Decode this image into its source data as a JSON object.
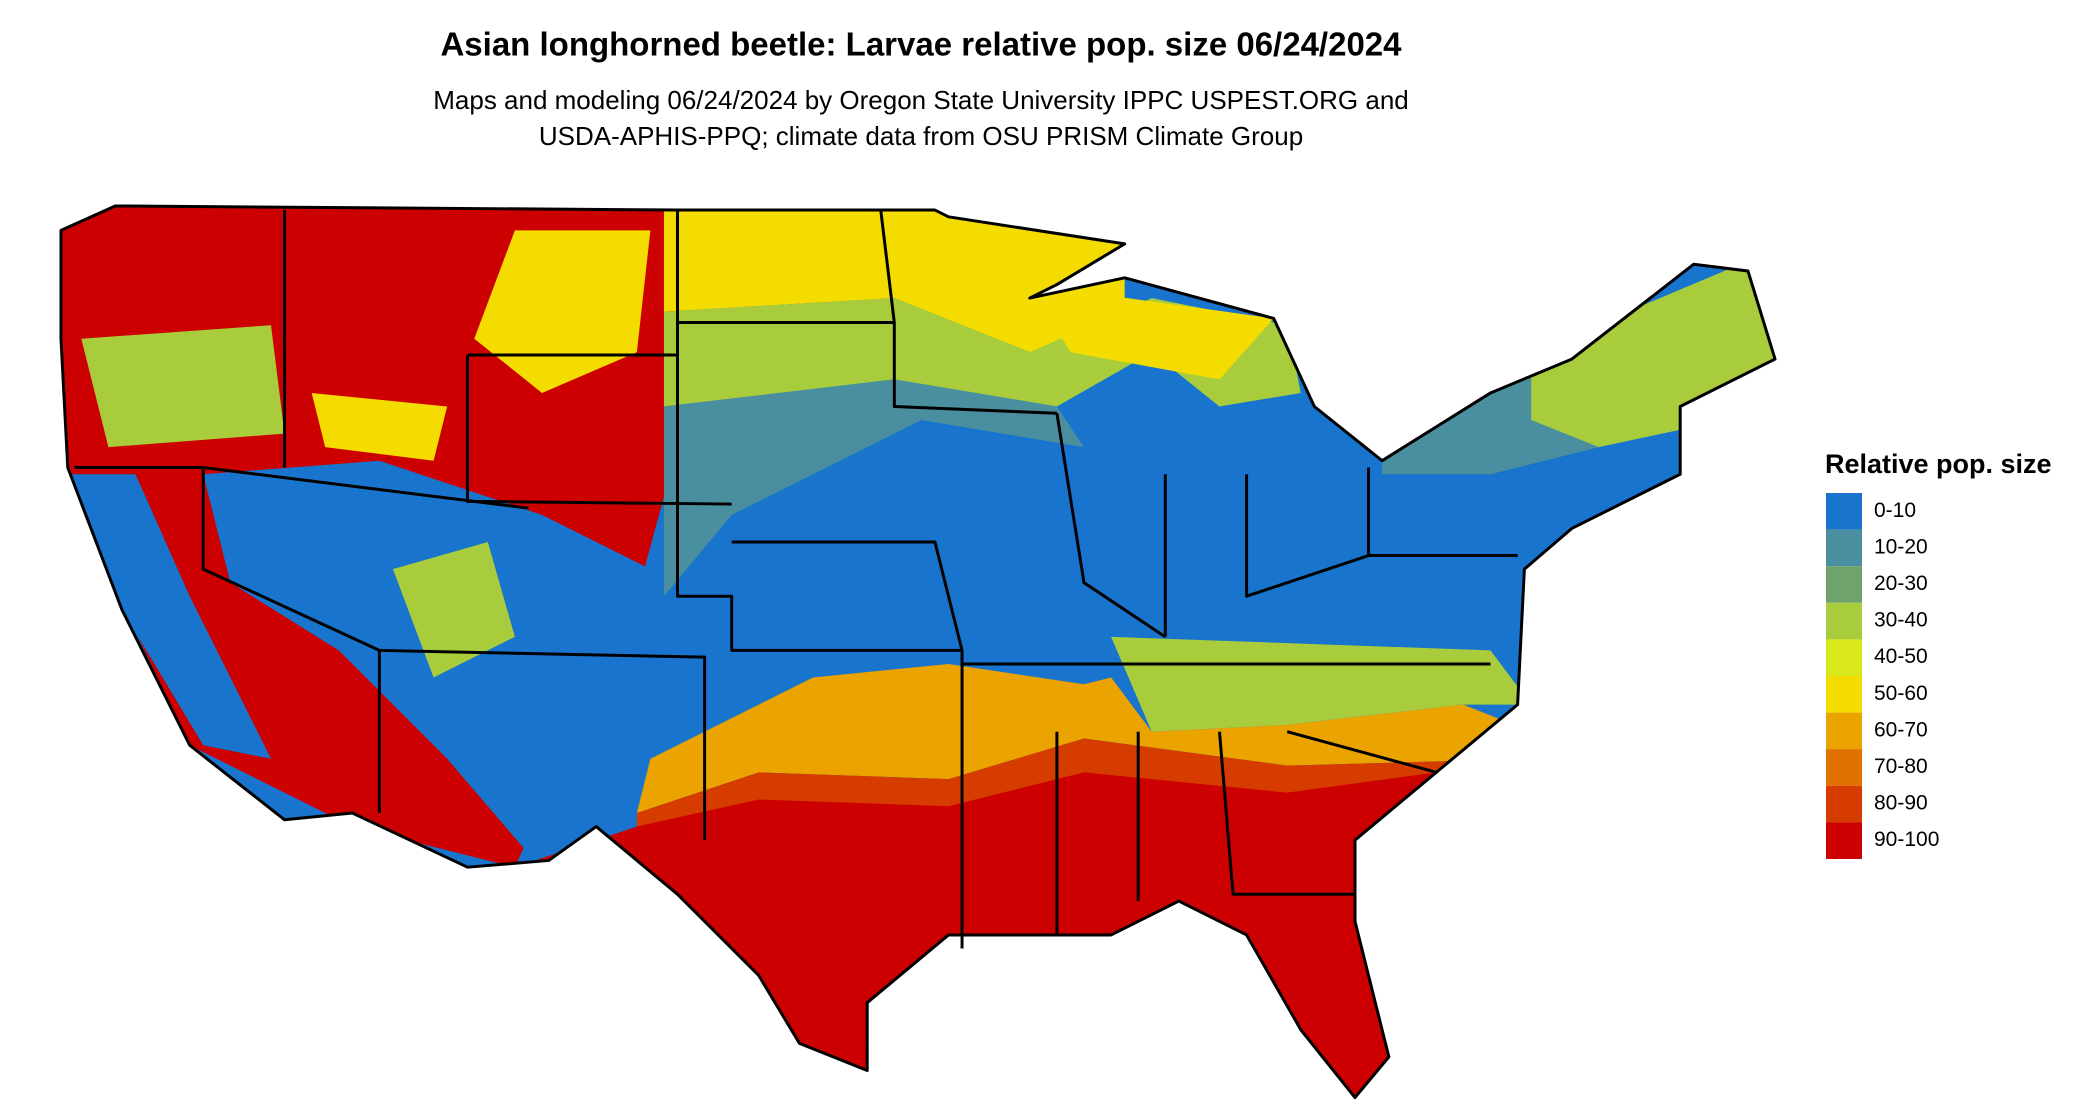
{
  "header": {
    "title": "Asian longhorned beetle: Larvae relative pop. size 06/24/2024",
    "subtitle": [
      "Maps and modeling 06/24/2024 by Oregon State University IPPC USPEST.ORG and",
      "USDA-APHIS-PPQ; climate data from OSU PRISM Climate Group"
    ]
  },
  "legend": {
    "title": "Relative pop. size",
    "items": [
      {
        "label": "0-10",
        "color": "#1874cd"
      },
      {
        "label": "10-20",
        "color": "#4a8f9f"
      },
      {
        "label": "20-30",
        "color": "#6fa36c"
      },
      {
        "label": "30-40",
        "color": "#a9cc3c"
      },
      {
        "label": "40-50",
        "color": "#d9e81b"
      },
      {
        "label": "50-60",
        "color": "#f5dc00"
      },
      {
        "label": "60-70",
        "color": "#eba300"
      },
      {
        "label": "70-80",
        "color": "#e07000"
      },
      {
        "label": "80-90",
        "color": "#d63b00"
      },
      {
        "label": "90-100",
        "color": "#cc0000"
      }
    ]
  }
}
